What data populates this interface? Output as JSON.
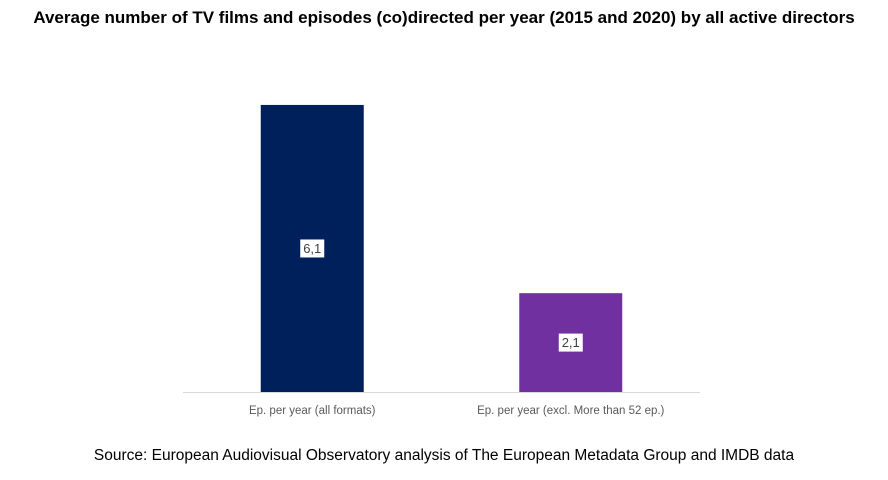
{
  "title": "Average number of TV films and episodes (co)directed per year (2015 and 2020) by all active directors",
  "source": "Source: European Audiovisual Observatory analysis of The European Metadata Group and IMDB data",
  "colors": {
    "bar_1": "#00205b",
    "bar_2": "#7030a0",
    "axis": "#d9d9d9"
  },
  "chart_data": {
    "type": "bar",
    "categories": [
      "Ep. per year (all formats)",
      "Ep. per year (excl. More than 52 ep.)"
    ],
    "values": [
      6.1,
      2.1
    ],
    "data_labels": [
      "6,1",
      "2,1"
    ],
    "ylim": [
      0,
      6.8
    ],
    "grid": false,
    "legend": "none"
  }
}
